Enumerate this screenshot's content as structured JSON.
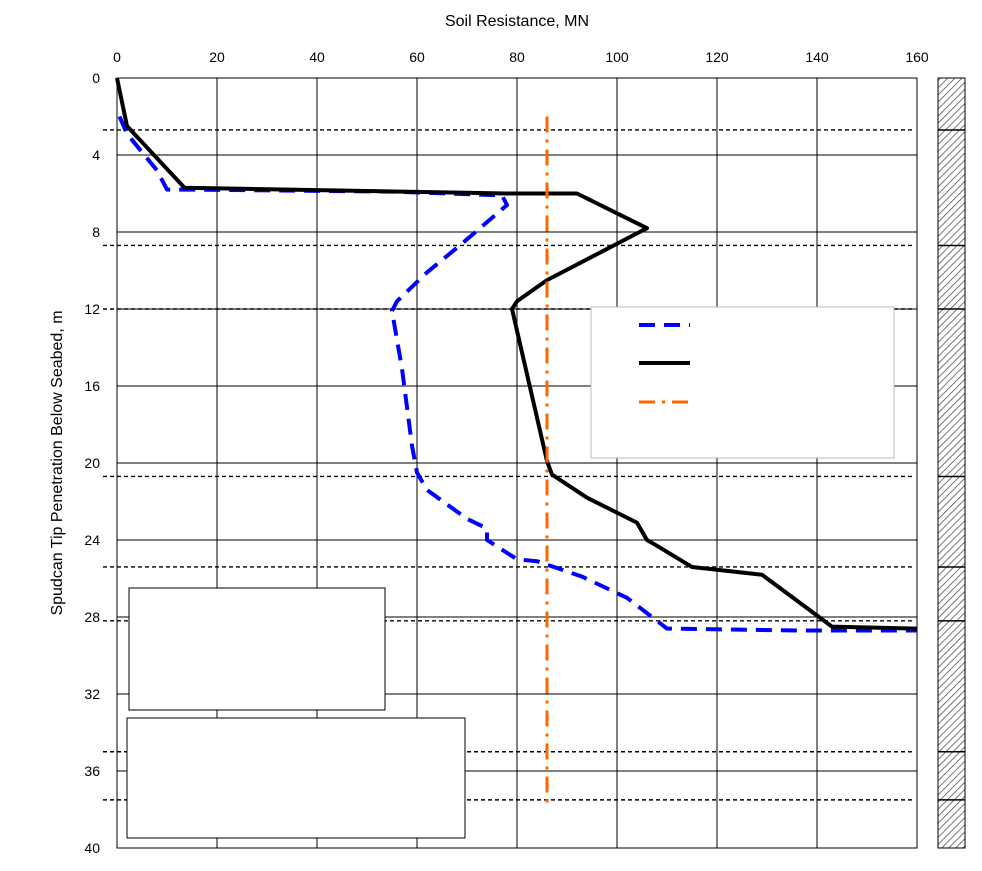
{
  "chart_data": {
    "type": "line",
    "xlabel": "Soil Resistance, MN",
    "ylabel": "Spudcan Tip Penetration Below Seabed, m",
    "xlim": [
      0,
      160
    ],
    "ylim": [
      0,
      40
    ],
    "x_ticks": [
      0,
      20,
      40,
      60,
      80,
      100,
      120,
      140,
      160
    ],
    "y_ticks": [
      0,
      4,
      8,
      12,
      16,
      20,
      24,
      28,
      32,
      36,
      40
    ],
    "y_inverted": true,
    "x_axis_position": "top",
    "grid": true,
    "legend": {
      "placement": "middle-right",
      "entries_text_visible": false
    },
    "colors": {
      "series_blue": "#0000ff",
      "series_black": "#000000",
      "series_orange": "#ff6600"
    },
    "series": [
      {
        "style": "dashed",
        "color": "#0000ff",
        "points": [
          [
            0.5,
            2.0
          ],
          [
            2,
            2.9
          ],
          [
            8,
            4.8
          ],
          [
            10,
            5.8
          ],
          [
            14,
            5.8
          ],
          [
            55,
            5.9
          ],
          [
            77,
            6.1
          ],
          [
            78,
            6.6
          ],
          [
            69,
            8.6
          ],
          [
            62,
            10.1
          ],
          [
            56,
            11.6
          ],
          [
            55,
            12.1
          ],
          [
            57,
            15.1
          ],
          [
            59,
            19.1
          ],
          [
            60,
            20.5
          ],
          [
            62,
            21.4
          ],
          [
            70,
            22.9
          ],
          [
            74,
            23.4
          ],
          [
            74,
            24.0
          ],
          [
            80,
            25.0
          ],
          [
            84,
            25.1
          ],
          [
            93,
            25.9
          ],
          [
            102,
            27.0
          ],
          [
            110,
            28.6
          ],
          [
            136,
            28.7
          ],
          [
            160,
            28.7
          ]
        ]
      },
      {
        "style": "solid",
        "color": "#000000",
        "points": [
          [
            0,
            0
          ],
          [
            2,
            2.5
          ],
          [
            13.5,
            5.7
          ],
          [
            78,
            6.0
          ],
          [
            92,
            6.0
          ],
          [
            106,
            7.8
          ],
          [
            86,
            10.5
          ],
          [
            80,
            11.6
          ],
          [
            79,
            12.0
          ],
          [
            86,
            19.9
          ],
          [
            87,
            20.6
          ],
          [
            94,
            21.8
          ],
          [
            104,
            23.1
          ],
          [
            106,
            24.0
          ],
          [
            108,
            24.3
          ],
          [
            115,
            25.4
          ],
          [
            129,
            25.8
          ],
          [
            143,
            28.5
          ],
          [
            160,
            28.6
          ]
        ]
      },
      {
        "style": "dash-dot",
        "color": "#ff6600",
        "points": [
          [
            86,
            2.0
          ],
          [
            86,
            38.0
          ]
        ]
      }
    ],
    "layer_boundaries_m": [
      2.7,
      8.7,
      12.0,
      20.7,
      25.4,
      28.2,
      35.0,
      37.5
    ],
    "strata_column_boundaries_m": [
      2.7,
      8.7,
      12.0,
      20.7,
      25.4,
      28.2,
      35.0,
      37.5
    ]
  }
}
